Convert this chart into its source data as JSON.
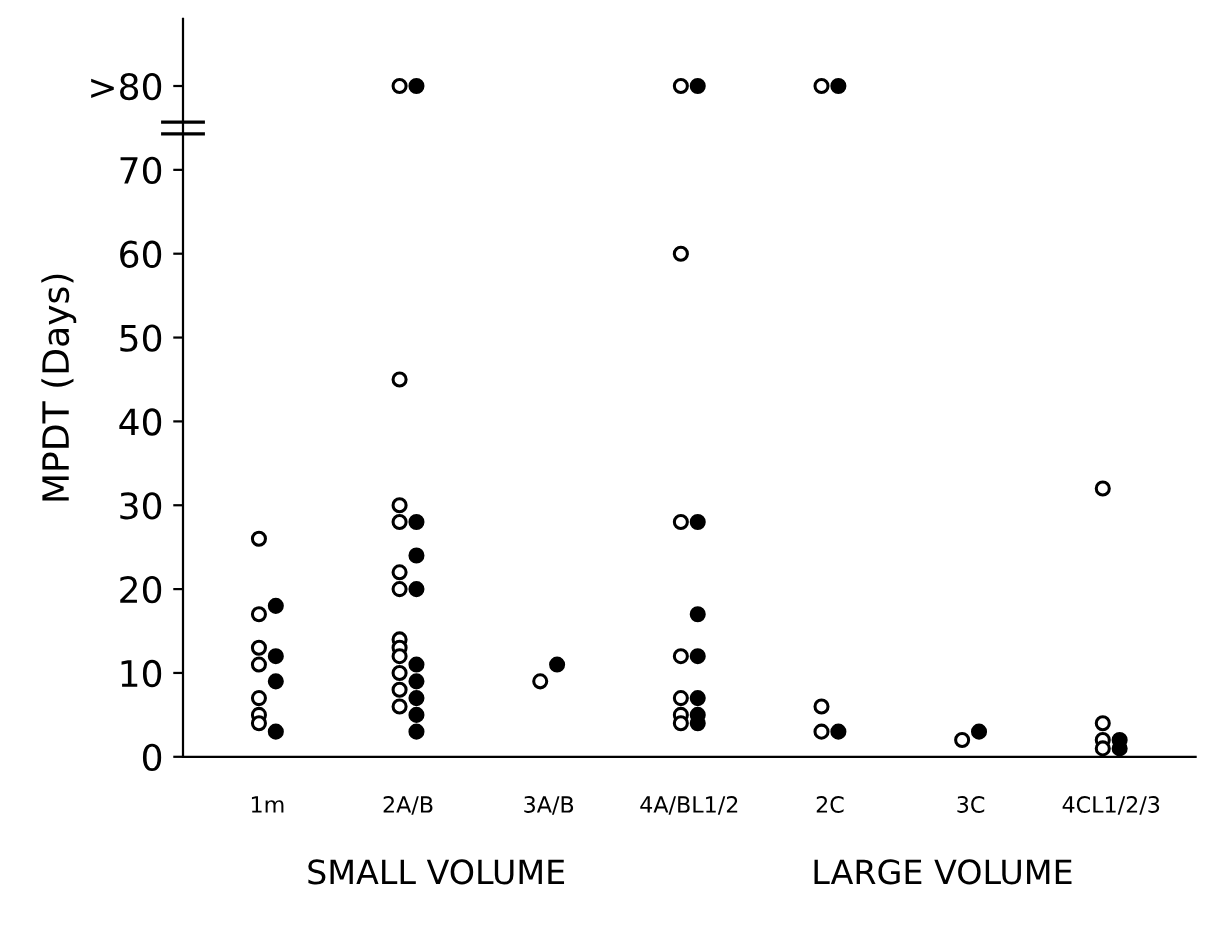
{
  "chart_data": {
    "type": "scatter",
    "ylabel": "MPDT (Days)",
    "categories": [
      "1m",
      "2A/B",
      "3A/B",
      "4A/BL1/2",
      "2C",
      "3C",
      "4CL1/2/3"
    ],
    "series": [
      {
        "color": "#ffffff",
        "x": [
          "1m",
          "1m",
          "1m",
          "1m",
          "1m",
          "1m",
          "1m",
          "2A/B",
          "2A/B",
          "2A/B",
          "2A/B",
          "2A/B",
          "2A/B",
          "2A/B",
          "2A/B",
          "2A/B",
          "2A/B",
          "2A/B",
          "2A/B",
          "3A/B",
          "4A/BL1/2",
          "4A/BL1/2",
          "4A/BL1/2",
          "4A/BL1/2",
          "4A/BL1/2",
          "4A/BL1/2",
          "4A/BL1/2",
          "2C",
          "2C",
          "2C",
          "3C",
          "4CL1/2/3",
          "4CL1/2/3",
          "4CL1/2/3",
          "4CL1/2/3"
        ],
        "values": [
          26,
          17,
          13,
          11,
          7,
          5,
          4,
          80,
          45,
          30,
          28,
          22,
          20,
          14,
          13,
          12,
          10,
          8,
          6,
          9,
          80,
          60,
          28,
          12,
          7,
          5,
          4,
          80,
          6,
          3,
          2,
          32,
          4,
          2,
          1
        ]
      },
      {
        "color": "#000000",
        "x": [
          "1m",
          "1m",
          "1m",
          "1m",
          "2A/B",
          "2A/B",
          "2A/B",
          "2A/B",
          "2A/B",
          "2A/B",
          "2A/B",
          "2A/B",
          "2A/B",
          "3A/B",
          "4A/BL1/2",
          "4A/BL1/2",
          "4A/BL1/2",
          "4A/BL1/2",
          "4A/BL1/2",
          "4A/BL1/2",
          "4A/BL1/2",
          "2C",
          "2C",
          "3C",
          "4CL1/2/3",
          "4CL1/2/3"
        ],
        "values": [
          18,
          12,
          9,
          3,
          80,
          28,
          24,
          20,
          11,
          9,
          7,
          5,
          3,
          11,
          80,
          28,
          17,
          12,
          7,
          5,
          4,
          80,
          3,
          3,
          2,
          1
        ]
      }
    ],
    "ylim": [
      0,
      88
    ],
    "yticks": [
      0,
      10,
      20,
      30,
      40,
      50,
      60,
      70,
      {
        "value": 80,
        "label": ">80"
      }
    ],
    "marker": "circle",
    "grid": false,
    "legend": false,
    "annotations": [
      "SMALL VOLUME",
      "LARGE VOLUME"
    ]
  }
}
